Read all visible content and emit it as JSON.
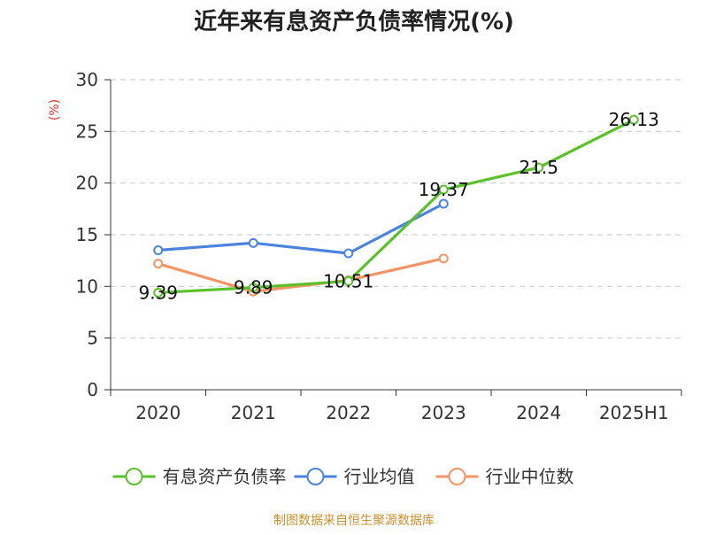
{
  "chart_data": {
    "type": "line",
    "title": "近年来有息资产负债率情况(%)",
    "ylabel": "(%)",
    "xlabel": "",
    "categories": [
      "2020",
      "2021",
      "2022",
      "2023",
      "2024",
      "2025H1"
    ],
    "ylim": [
      0,
      30
    ],
    "yticks": [
      0,
      5,
      10,
      15,
      20,
      25,
      30
    ],
    "grid": true,
    "legend_position": "bottom",
    "series": [
      {
        "name": "有息资产负债率",
        "color": "#5ac12a",
        "values": [
          9.39,
          9.89,
          10.51,
          19.37,
          21.5,
          26.13
        ],
        "labels": [
          "9.39",
          "9.89",
          "10.51",
          "19.37",
          "21.5",
          "26.13"
        ]
      },
      {
        "name": "行业均值",
        "color": "#4a84de",
        "values": [
          13.5,
          14.2,
          13.2,
          18.0,
          null,
          null
        ]
      },
      {
        "name": "行业中位数",
        "color": "#f59464",
        "values": [
          12.2,
          9.5,
          10.6,
          12.7,
          null,
          null
        ]
      }
    ]
  },
  "source": "制图数据来自恒生聚源数据库"
}
